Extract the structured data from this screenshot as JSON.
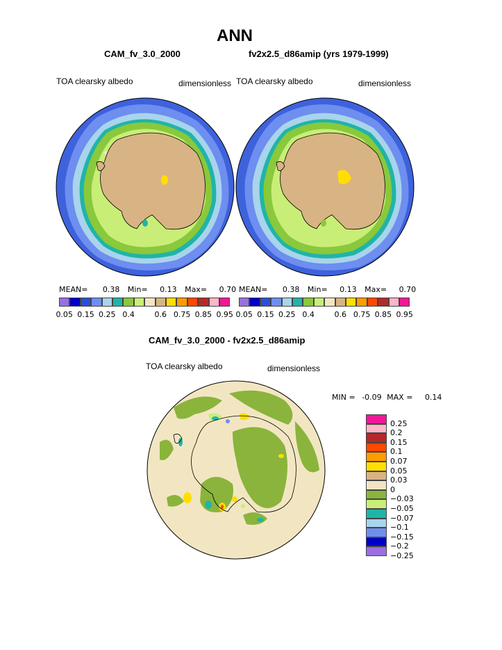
{
  "main_title": "ANN",
  "panels": [
    {
      "case": "CAM_fv_3.0_2000",
      "variable": "TOA clearsky albedo",
      "units": "dimensionless",
      "stats": {
        "mean_label": "MEAN=",
        "mean": "0.38",
        "min_label": "Min=",
        "min": "0.13",
        "max_label": "Max=",
        "max": "0.70"
      }
    },
    {
      "case": "fv2x2.5_d86amip (yrs 1979-1999)",
      "variable": "TOA clearsky albedo",
      "units": "dimensionless",
      "stats": {
        "mean_label": "MEAN=",
        "mean": "0.38",
        "min_label": "Min=",
        "min": "0.13",
        "max_label": "Max=",
        "max": "0.70"
      }
    }
  ],
  "colorbar": {
    "colors": [
      "#9a6fe0",
      "#0000c8",
      "#2850d8",
      "#6e8ef0",
      "#a8d4ec",
      "#20b4a8",
      "#8ac83c",
      "#c8ee78",
      "#f2e6c2",
      "#d8b484",
      "#ffde00",
      "#ff9c00",
      "#ff4800",
      "#b42828",
      "#ffb6c8",
      "#f01898"
    ],
    "tick_labels": [
      "0.05",
      "0.15",
      "0.25",
      "0.4",
      "0.6",
      "0.75",
      "0.85",
      "0.95"
    ]
  },
  "difference": {
    "title": "CAM_fv_3.0_2000 - fv2x2.5_d86amip",
    "variable": "TOA clearsky albedo",
    "units": "dimensionless",
    "min_label": "MIN =",
    "min": "-0.09",
    "max_label": "MAX =",
    "max": "0.14",
    "legend_colors": [
      "#f01898",
      "#ffb6c8",
      "#b42828",
      "#ff4800",
      "#ff9c00",
      "#ffde00",
      "#d8b484",
      "#f2e6c2",
      "#8ab43c",
      "#c8ee78",
      "#20b4a8",
      "#a8d4ec",
      "#6e8ef0",
      "#0000c8",
      "#9a6fe0"
    ],
    "legend_labels": [
      "0.25",
      "0.2",
      "0.15",
      "0.1",
      "0.07",
      "0.05",
      "0.03",
      "0",
      "−0.03",
      "−0.05",
      "−0.07",
      "−0.1",
      "−0.15",
      "−0.2",
      "−0.25"
    ]
  }
}
